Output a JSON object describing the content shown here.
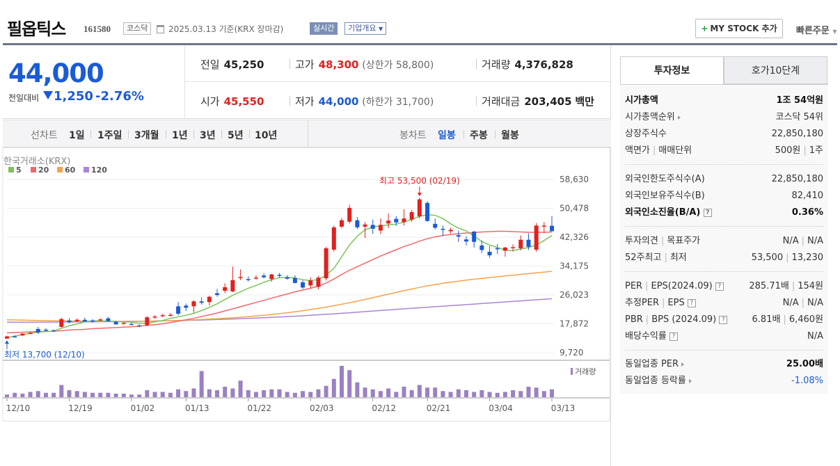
{
  "header": {
    "stock_name": "필옵틱스",
    "stock_code": "161580",
    "market_badge": "코스닥",
    "as_of": "2025.03.13 기준(KRX 장마감)",
    "live_badge": "실시간",
    "corp_overview": "기업개요",
    "mystock_button": "MY STOCK 추가",
    "quick_order": "빠른주문"
  },
  "price": {
    "current": "44,000",
    "change_label": "전일대비",
    "change": "1,250",
    "change_pct": "-2.76%"
  },
  "quote": {
    "prev_close_label": "전일",
    "prev_close": "45,250",
    "high_label": "고가",
    "high": "48,300",
    "upper_limit": "(상한가 58,800)",
    "volume_label": "거래량",
    "volume": "4,376,828",
    "open_label": "시가",
    "open": "45,550",
    "low_label": "저가",
    "low": "44,000",
    "lower_limit": "(하한가 31,700)",
    "amount_label": "거래대금",
    "amount": "203,405",
    "amount_unit": "백만"
  },
  "line_tabs": {
    "label": "선차트",
    "items": [
      "1일",
      "1주일",
      "3개월",
      "1년",
      "3년",
      "5년",
      "10년"
    ]
  },
  "candle_tabs": {
    "label": "봉차트",
    "items": [
      "일봉",
      "주봉",
      "월봉"
    ],
    "selected": "일봉"
  },
  "side_tabs": [
    "투자정보",
    "호가10단계"
  ],
  "side_info": {
    "market_cap": {
      "label": "시가총액",
      "value": "1조 54억원"
    },
    "market_cap_rank": {
      "label": "시가총액순위",
      "value": "코스닥 54위"
    },
    "listed_shares": {
      "label": "상장주식수",
      "value": "22,850,180"
    },
    "face_value": {
      "label1": "액면가",
      "label2": "매매단위",
      "value1": "500원",
      "value2": "1주"
    },
    "foreign_limit": {
      "label": "외국인한도주식수(A)",
      "value": "22,850,180"
    },
    "foreign_hold": {
      "label": "외국인보유주식수(B)",
      "value": "82,410"
    },
    "foreign_ratio": {
      "label": "외국인소진율(B/A)",
      "value": "0.36%"
    },
    "opinion": {
      "label1": "투자의견",
      "label2": "목표주가",
      "value1": "N/A",
      "value2": "N/A"
    },
    "week52": {
      "label1": "52주최고",
      "label2": "최저",
      "value1": "53,500",
      "value2": "13,230"
    },
    "per": {
      "label1": "PER",
      "label2": "EPS(2024.09)",
      "value1": "285.71배",
      "value2": "154원"
    },
    "est_per": {
      "label1": "추정PER",
      "label2": "EPS",
      "value1": "N/A",
      "value2": "N/A"
    },
    "pbr": {
      "label1": "PBR",
      "label2": "BPS (2024.09)",
      "value1": "6.81배",
      "value2": "6,460원"
    },
    "dividend": {
      "label": "배당수익률",
      "value": "N/A"
    },
    "industry_per": {
      "label": "동일업종 PER",
      "value": "25.00배"
    },
    "industry_change": {
      "label": "동일업종 등락률",
      "value": "-1.08%"
    }
  },
  "colors": {
    "up": "#e0211f",
    "down": "#1a5bd6",
    "ma5": "#7cc35a",
    "ma20": "#f0686a",
    "ma60": "#f7a24b",
    "ma120": "#a884d6",
    "volume": "#9b80c2"
  },
  "chart_data": {
    "type": "candlestick",
    "source_label": "한국거래소(KRX)",
    "legend": [
      "5",
      "20",
      "60",
      "120"
    ],
    "y_ticks": [
      "58,630",
      "50,478",
      "42,326",
      "34,175",
      "26,023",
      "17,872",
      "9,720"
    ],
    "ylim": [
      9720,
      58630
    ],
    "x_ticks": [
      "12/10",
      "12/19",
      "01/02",
      "01/13",
      "01/22",
      "02/03",
      "02/12",
      "02/21",
      "03/04",
      "03/13"
    ],
    "volume_label": "거래량",
    "high_annotation": "최고 53,500 (02/19)",
    "low_annotation": "최저 13,700 (12/10)",
    "candles": [
      [
        13700,
        14500,
        13600,
        14300
      ],
      [
        14300,
        14600,
        14000,
        14200
      ],
      [
        14600,
        15200,
        14400,
        15100
      ],
      [
        15200,
        15600,
        14900,
        15300
      ],
      [
        16400,
        17000,
        15000,
        15400
      ],
      [
        16200,
        16600,
        15700,
        16000
      ],
      [
        16000,
        16300,
        15600,
        15800
      ],
      [
        17000,
        19600,
        16800,
        19200
      ],
      [
        18800,
        19500,
        18000,
        18300
      ],
      [
        18600,
        19400,
        18300,
        19000
      ],
      [
        19000,
        19600,
        18400,
        18500
      ],
      [
        18800,
        19200,
        18200,
        18600
      ],
      [
        18900,
        19400,
        18700,
        19100
      ],
      [
        19400,
        19800,
        18500,
        18600
      ],
      [
        18400,
        18700,
        17600,
        17700
      ],
      [
        18000,
        18400,
        17700,
        18100
      ],
      [
        17800,
        18200,
        17500,
        17600
      ],
      [
        17400,
        17700,
        16900,
        17100
      ],
      [
        17500,
        20000,
        17200,
        19700
      ],
      [
        19700,
        20300,
        19300,
        19900
      ],
      [
        20100,
        20700,
        19700,
        20300
      ],
      [
        20300,
        20900,
        19900,
        20400
      ],
      [
        22800,
        24000,
        20200,
        20700
      ],
      [
        23000,
        23600,
        21500,
        22400
      ],
      [
        22800,
        24500,
        21000,
        24200
      ],
      [
        24200,
        25300,
        23300,
        23800
      ],
      [
        24000,
        25800,
        23000,
        25500
      ],
      [
        26500,
        27700,
        25500,
        26000
      ],
      [
        27200,
        29300,
        26500,
        28200
      ],
      [
        27000,
        34000,
        26800,
        30200
      ],
      [
        30800,
        33200,
        30200,
        31100
      ],
      [
        30500,
        31300,
        29800,
        30300
      ],
      [
        30700,
        31600,
        30300,
        30900
      ],
      [
        31500,
        32200,
        30700,
        31000
      ],
      [
        30500,
        32000,
        29800,
        31800
      ],
      [
        31700,
        32200,
        30900,
        31500
      ],
      [
        31000,
        31600,
        30300,
        30600
      ],
      [
        30800,
        31600,
        29200,
        29400
      ],
      [
        29600,
        30100,
        27700,
        28100
      ],
      [
        28700,
        31000,
        27800,
        30100
      ],
      [
        28300,
        31400,
        27600,
        30900
      ],
      [
        30700,
        39600,
        30100,
        39200
      ],
      [
        38800,
        45600,
        38300,
        45100
      ],
      [
        45300,
        47700,
        44900,
        47100
      ],
      [
        46700,
        51500,
        46200,
        50600
      ],
      [
        47100,
        48000,
        44600,
        45100
      ],
      [
        45300,
        46600,
        42100,
        45900
      ],
      [
        45800,
        47300,
        43200,
        44700
      ],
      [
        44200,
        47600,
        43200,
        45800
      ],
      [
        46200,
        49000,
        44900,
        47000
      ],
      [
        47500,
        48300,
        45500,
        46500
      ],
      [
        46600,
        50200,
        45600,
        47600
      ],
      [
        47300,
        50000,
        46700,
        49400
      ],
      [
        48200,
        53500,
        47600,
        53000
      ],
      [
        52000,
        52500,
        46700,
        46900
      ],
      [
        46100,
        47600,
        44500,
        45000
      ],
      [
        44700,
        45600,
        42600,
        44400
      ],
      [
        44000,
        45000,
        43300,
        44400
      ],
      [
        42900,
        44200,
        41000,
        42500
      ],
      [
        41700,
        42600,
        40000,
        41100
      ],
      [
        43900,
        44100,
        39400,
        41000
      ],
      [
        40000,
        41400,
        37900,
        38700
      ],
      [
        38200,
        39800,
        36500,
        37200
      ],
      [
        39200,
        40400,
        37600,
        38900
      ],
      [
        38500,
        39600,
        36800,
        39400
      ],
      [
        39400,
        40300,
        38300,
        39500
      ],
      [
        39200,
        42800,
        38600,
        41600
      ],
      [
        41600,
        43400,
        38700,
        39600
      ],
      [
        38800,
        46300,
        38200,
        45600
      ],
      [
        45300,
        46600,
        43500,
        45600
      ],
      [
        45550,
        48300,
        44000,
        44000
      ]
    ],
    "volume": [
      3,
      5,
      4,
      6,
      7,
      5,
      5,
      14,
      8,
      7,
      6,
      5,
      5,
      5,
      4,
      4,
      3,
      3,
      8,
      6,
      6,
      5,
      9,
      7,
      10,
      30,
      9,
      8,
      12,
      10,
      19,
      8,
      6,
      8,
      9,
      9,
      6,
      5,
      7,
      6,
      9,
      13,
      21,
      36,
      31,
      17,
      11,
      9,
      7,
      10,
      6,
      12,
      8,
      14,
      11,
      11,
      7,
      6,
      9,
      8,
      6,
      8,
      6,
      5,
      6,
      8,
      7,
      12,
      11,
      7,
      9
    ],
    "ma": {
      "5": [
        14000,
        14400,
        14800,
        15200,
        15500,
        15700,
        15800,
        16600,
        17300,
        17800,
        18400,
        18700,
        18700,
        18600,
        18500,
        18400,
        18300,
        18000,
        18000,
        18400,
        18800,
        19400,
        19800,
        20300,
        20800,
        21600,
        22500,
        23500,
        24700,
        25900,
        26900,
        27900,
        28700,
        29600,
        30300,
        30900,
        31000,
        30800,
        30300,
        30100,
        30300,
        31600,
        33500,
        36800,
        40100,
        42600,
        44400,
        45200,
        45500,
        45800,
        46000,
        46600,
        47300,
        48200,
        48700,
        48500,
        47600,
        46100,
        44900,
        44100,
        42600,
        41100,
        40100,
        39400,
        38700,
        38500,
        39000,
        39400,
        40100,
        41400,
        42800
      ],
      "20": [
        15300,
        15400,
        15500,
        15600,
        15700,
        15700,
        15800,
        15900,
        16100,
        16200,
        16300,
        16500,
        16600,
        16700,
        16800,
        16900,
        17000,
        17200,
        17400,
        17600,
        17900,
        18200,
        18600,
        19000,
        19400,
        19900,
        20400,
        20900,
        21500,
        22100,
        22700,
        23300,
        23900,
        24500,
        25100,
        25700,
        26300,
        26900,
        27400,
        27900,
        28500,
        29400,
        30500,
        31800,
        33000,
        34000,
        35000,
        36000,
        37000,
        37900,
        38800,
        39700,
        40400,
        41200,
        41900,
        42400,
        42800,
        43100,
        43300,
        43500,
        43600,
        43800,
        43900,
        44000,
        44000,
        43900,
        43800,
        43700,
        43700,
        43700,
        43800
      ],
      "60": [
        19000,
        18950,
        18900,
        18850,
        18800,
        18760,
        18720,
        18690,
        18660,
        18640,
        18620,
        18600,
        18580,
        18570,
        18560,
        18550,
        18550,
        18560,
        18580,
        18620,
        18670,
        18730,
        18800,
        18880,
        18970,
        19070,
        19180,
        19300,
        19430,
        19570,
        19720,
        19890,
        20070,
        20270,
        20490,
        20730,
        20990,
        21270,
        21570,
        21890,
        22230,
        22590,
        22980,
        23390,
        23820,
        24270,
        24740,
        25230,
        25730,
        26230,
        26730,
        27220,
        27700,
        28150,
        28570,
        28950,
        29300,
        29620,
        29920,
        30200,
        30460,
        30700,
        30930,
        31150,
        31370,
        31590,
        31810,
        32030,
        32250,
        32470,
        32700
      ],
      "120": [
        18300,
        18300,
        18310,
        18320,
        18330,
        18340,
        18350,
        18360,
        18370,
        18390,
        18410,
        18430,
        18450,
        18470,
        18490,
        18520,
        18550,
        18580,
        18610,
        18650,
        18690,
        18730,
        18780,
        18830,
        18880,
        18940,
        19000,
        19070,
        19140,
        19220,
        19300,
        19390,
        19480,
        19580,
        19680,
        19790,
        19900,
        20020,
        20140,
        20270,
        20400,
        20540,
        20680,
        20830,
        20980,
        21140,
        21300,
        21460,
        21620,
        21780,
        21940,
        22090,
        22240,
        22390,
        22540,
        22690,
        22840,
        22990,
        23140,
        23290,
        23440,
        23590,
        23740,
        23890,
        24040,
        24190,
        24340,
        24490,
        24640,
        24790,
        24950
      ]
    }
  }
}
